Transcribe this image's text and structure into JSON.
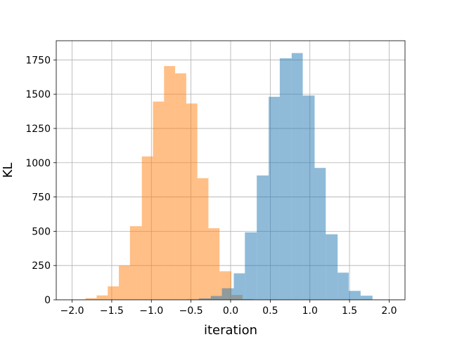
{
  "chart_data": {
    "type": "histogram",
    "xlabel": "iteration",
    "ylabel": "KL",
    "xlim": [
      -2.2,
      2.2
    ],
    "ylim": [
      0,
      1890
    ],
    "grid": true,
    "xticks": [
      -2.0,
      -1.5,
      -1.0,
      -0.5,
      0.0,
      0.5,
      1.0,
      1.5,
      2.0
    ],
    "xtick_labels": [
      "−2.0",
      "−1.5",
      "−1.0",
      "−0.5",
      "0.0",
      "0.5",
      "1.0",
      "1.5",
      "2.0"
    ],
    "yticks": [
      0,
      250,
      500,
      750,
      1000,
      1250,
      1500,
      1750
    ],
    "ytick_labels": [
      "0",
      "250",
      "500",
      "750",
      "1000",
      "1250",
      "1500",
      "1750"
    ],
    "series": [
      {
        "color": "#ff7f0e",
        "alpha": 0.5,
        "bins": [
          [
            -1.83,
            -1.69,
            12
          ],
          [
            -1.69,
            -1.55,
            32
          ],
          [
            -1.55,
            -1.41,
            98
          ],
          [
            -1.41,
            -1.27,
            248
          ],
          [
            -1.27,
            -1.12,
            537
          ],
          [
            -1.12,
            -0.98,
            1046
          ],
          [
            -0.98,
            -0.84,
            1446
          ],
          [
            -0.84,
            -0.7,
            1705
          ],
          [
            -0.7,
            -0.56,
            1652
          ],
          [
            -0.56,
            -0.42,
            1432
          ],
          [
            -0.42,
            -0.28,
            887
          ],
          [
            -0.28,
            -0.14,
            522
          ],
          [
            -0.14,
            0.01,
            208
          ],
          [
            0.01,
            0.15,
            35
          ],
          [
            0.15,
            0.29,
            5
          ]
        ]
      },
      {
        "color": "#1f77b4",
        "alpha": 0.5,
        "bins": [
          [
            -0.55,
            -0.4,
            3
          ],
          [
            -0.4,
            -0.25,
            10
          ],
          [
            -0.25,
            -0.11,
            28
          ],
          [
            -0.11,
            0.04,
            84
          ],
          [
            0.04,
            0.18,
            193
          ],
          [
            0.18,
            0.33,
            492
          ],
          [
            0.33,
            0.48,
            907
          ],
          [
            0.48,
            0.62,
            1481
          ],
          [
            0.62,
            0.77,
            1762
          ],
          [
            0.77,
            0.91,
            1800
          ],
          [
            0.91,
            1.06,
            1490
          ],
          [
            1.06,
            1.2,
            962
          ],
          [
            1.2,
            1.35,
            478
          ],
          [
            1.35,
            1.49,
            198
          ],
          [
            1.49,
            1.64,
            65
          ],
          [
            1.64,
            1.79,
            30
          ]
        ]
      }
    ]
  }
}
